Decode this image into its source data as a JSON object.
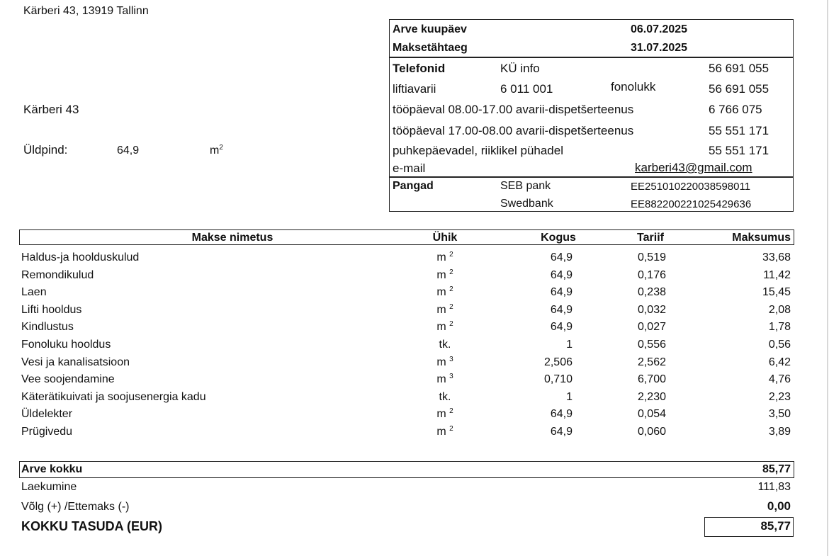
{
  "address": "Kärberi 43, 13919 Tallinn",
  "building": "Kärberi  43",
  "area": {
    "label": "Üldpind:",
    "value": "64,9",
    "unit": "m",
    "unit_exp": "2"
  },
  "info": {
    "invoice_date_label": "Arve kuupäev",
    "invoice_date": "06.07.2025",
    "due_date_label": "Maksetähtaeg",
    "due_date": "31.07.2025",
    "phones_label": "Telefonid",
    "ku_info": "KÜ info",
    "ku_info_phone": "56 691 055",
    "lift_label": "liftiavarii",
    "lift_phone": "6 011 001",
    "fonolukk_label": "fonolukk",
    "fonolukk_phone": "56 691 055",
    "day_label": "tööpäeval 08.00-17.00 avarii-dispetšerteenus",
    "day_phone": "6 766 075",
    "night_label": "tööpäeval 17.00-08.00 avarii-dispetšerteenus",
    "night_phone": "55 551 171",
    "holiday_label": "puhkepäevadel, riiklikel pühadel",
    "holiday_phone": "55 551 171",
    "email_label": "e-mail",
    "email": "karberi43@gmail.com",
    "banks_label": "Pangad",
    "banks": [
      {
        "name": "SEB pank",
        "iban": "EE251010220038598011"
      },
      {
        "name": "Swedbank",
        "iban": "EE882200221025429636"
      }
    ]
  },
  "table": {
    "headers": [
      "Makse nimetus",
      "Ühik",
      "Kogus",
      "Tariif",
      "Maksumus"
    ],
    "rows": [
      {
        "name": "Haldus-ja hoolduskulud",
        "unit": "m",
        "exp": "2",
        "qty": "64,9",
        "rate": "0,519",
        "cost": "33,68"
      },
      {
        "name": "Remondikulud",
        "unit": "m",
        "exp": "2",
        "qty": "64,9",
        "rate": "0,176",
        "cost": "11,42"
      },
      {
        "name": "Laen",
        "unit": "m",
        "exp": "2",
        "qty": "64,9",
        "rate": "0,238",
        "cost": "15,45"
      },
      {
        "name": "Lifti hooldus",
        "unit": "m",
        "exp": "2",
        "qty": "64,9",
        "rate": "0,032",
        "cost": "2,08"
      },
      {
        "name": "Kindlustus",
        "unit": "m",
        "exp": "2",
        "qty": "64,9",
        "rate": "0,027",
        "cost": "1,78"
      },
      {
        "name": "Fonoluku hooldus",
        "unit": "tk.",
        "exp": "",
        "qty": "1",
        "rate": "0,556",
        "cost": "0,56"
      },
      {
        "name": "Vesi ja kanalisatsioon",
        "unit": "m",
        "exp": "3",
        "qty": "2,506",
        "rate": "2,562",
        "cost": "6,42"
      },
      {
        "name": "Vee soojendamine",
        "unit": "m",
        "exp": "3",
        "qty": "0,710",
        "rate": "6,700",
        "cost": "4,76"
      },
      {
        "name": "Käterätikuivati ja soojusenergia kadu",
        "unit": "tk.",
        "exp": "",
        "qty": "1",
        "rate": "2,230",
        "cost": "2,23"
      },
      {
        "name": "Üldelekter",
        "unit": "m",
        "exp": "2",
        "qty": "64,9",
        "rate": "0,054",
        "cost": "3,50"
      },
      {
        "name": "Prügivedu",
        "unit": "m",
        "exp": "2",
        "qty": "64,9",
        "rate": "0,060",
        "cost": "3,89"
      }
    ]
  },
  "totals": {
    "invoice_total_label": "Arve kokku",
    "invoice_total": "85,77",
    "received_label": "Laekumine",
    "received": "111,83",
    "debt_label": "Võlg (+) /Ettemaks (-)",
    "debt": "0,00",
    "to_pay_label": "KOKKU TASUDA (EUR)",
    "to_pay": "85,77"
  }
}
